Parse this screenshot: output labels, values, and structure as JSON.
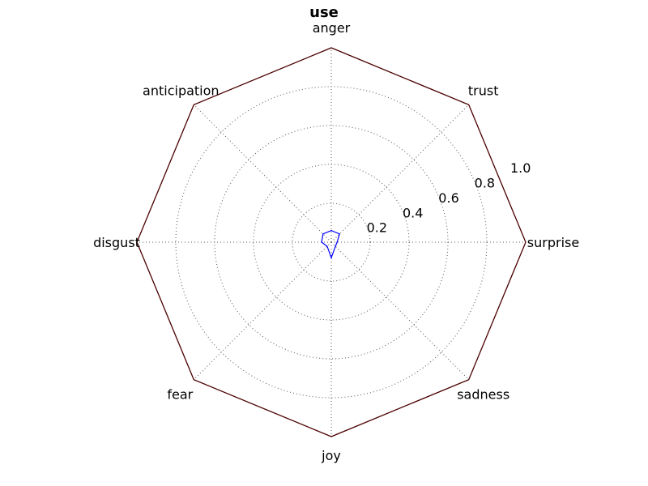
{
  "chart_data": {
    "type": "radar",
    "title": "use",
    "categories": [
      "surprise",
      "trust",
      "anger",
      "anticipation",
      "disgust",
      "fear",
      "joy",
      "sadness"
    ],
    "series": [
      {
        "values": [
          0.03,
          0.06,
          0.06,
          0.06,
          0.05,
          0.03,
          0.08,
          0.03
        ]
      }
    ],
    "rlim": [
      0,
      1.0
    ],
    "rticks": [
      "0.2",
      "0.4",
      "0.6",
      "0.8",
      "1.0"
    ],
    "grid": true,
    "colors": {
      "series": "#0000ff",
      "frame": "#4b0000",
      "grid": "#555555"
    }
  }
}
